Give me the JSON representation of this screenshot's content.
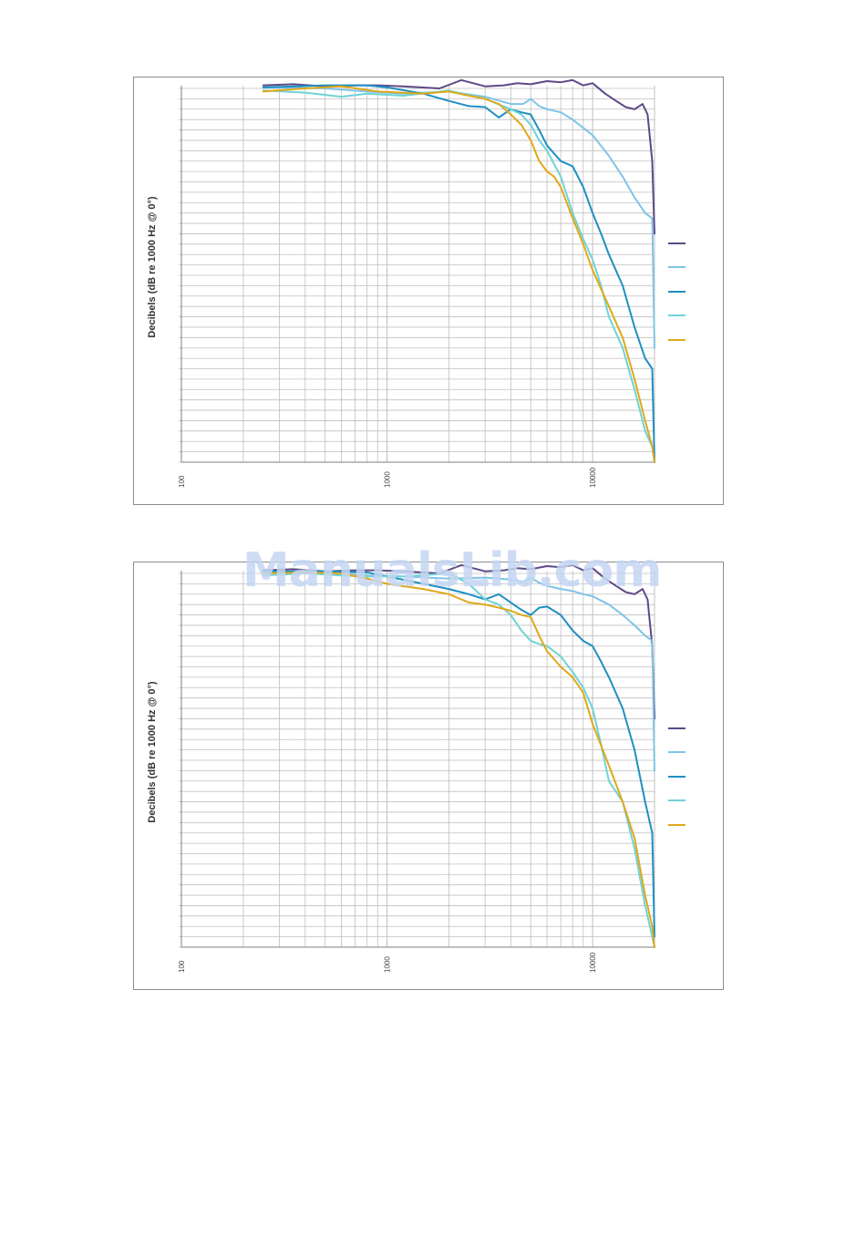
{
  "watermark": "ManualsLib.com",
  "colors": {
    "series": [
      "#5d4a86",
      "#7fc4e8",
      "#1f8fc2",
      "#6fd3d6",
      "#e0a81a"
    ],
    "grid": "#bfbfbf",
    "border": "#8c8c8c"
  },
  "chart_data": [
    {
      "type": "line",
      "ylabel": "Decibels (dB re 1000 Hz @ 0°)",
      "xscale": "log",
      "xlim": [
        100,
        20000
      ],
      "ylim": [
        -36,
        0
      ],
      "x_ticks": [
        "100",
        "1000",
        "10000"
      ],
      "grid": true,
      "legend": "right",
      "series": [
        {
          "x": [
            250,
            350,
            500,
            700,
            900,
            1200,
            1800,
            2300,
            3000,
            3700,
            4300,
            5000,
            6000,
            7000,
            8000,
            9000,
            10000,
            11500,
            13000,
            14500,
            16000,
            17500,
            18500,
            19500,
            20000
          ],
          "values": [
            0.3,
            0.4,
            0.2,
            0.3,
            0.3,
            0.2,
            0,
            0.8,
            0.2,
            0.3,
            0.5,
            0.4,
            0.7,
            0.6,
            0.8,
            0.3,
            0.5,
            -0.5,
            -1.2,
            -1.8,
            -2.0,
            -1.5,
            -2.5,
            -7,
            -14
          ]
        },
        {
          "x": [
            250,
            500,
            800,
            1200,
            2000,
            3000,
            4000,
            4600,
            5000,
            5500,
            6000,
            7000,
            8000,
            9000,
            10000,
            12000,
            14000,
            16000,
            18000,
            19500,
            20000
          ],
          "values": [
            0.1,
            0,
            -0.3,
            -0.5,
            -0.3,
            -0.8,
            -1.5,
            -1.5,
            -1.0,
            -1.7,
            -2.0,
            -2.3,
            -3.0,
            -3.8,
            -4.5,
            -6.5,
            -8.5,
            -10.5,
            -12.0,
            -12.5,
            -25
          ]
        },
        {
          "x": [
            250,
            500,
            800,
            1000,
            1500,
            2000,
            2500,
            3000,
            3500,
            4000,
            4500,
            5000,
            5500,
            6000,
            7000,
            8000,
            9000,
            10000,
            11000,
            12000,
            14000,
            16000,
            18000,
            19500,
            20000
          ],
          "values": [
            0.1,
            0.3,
            0.3,
            0.1,
            -0.5,
            -1.2,
            -1.7,
            -1.8,
            -2.8,
            -2.0,
            -2.3,
            -2.5,
            -4.0,
            -5.5,
            -7.0,
            -7.5,
            -9.5,
            -12.0,
            -14.0,
            -16.0,
            -19.0,
            -23.0,
            -26.0,
            -27.0,
            -36
          ]
        },
        {
          "x": [
            250,
            400,
            600,
            800,
            1200,
            2000,
            3000,
            4000,
            4500,
            5000,
            5500,
            6000,
            7000,
            8000,
            9000,
            10000,
            11000,
            12000,
            14000,
            16000,
            18000,
            19500,
            20000
          ],
          "values": [
            -0.2,
            -0.4,
            -0.8,
            -0.5,
            -0.7,
            -0.2,
            -1.0,
            -2.0,
            -2.5,
            -3.5,
            -5.0,
            -6.0,
            -8.5,
            -12.0,
            -14.5,
            -16.5,
            -19.0,
            -22.0,
            -25.0,
            -29.0,
            -33.0,
            -34.5,
            -36
          ]
        },
        {
          "x": [
            250,
            400,
            600,
            900,
            1500,
            2000,
            2500,
            3000,
            3500,
            4000,
            4500,
            5000,
            5500,
            6000,
            6500,
            7000,
            8000,
            9000,
            10000,
            12000,
            14000,
            16000,
            18000,
            19500,
            20000
          ],
          "values": [
            -0.3,
            0,
            0.2,
            -0.3,
            -0.5,
            -0.3,
            -0.7,
            -1.0,
            -1.5,
            -2.5,
            -3.5,
            -5.0,
            -7.0,
            -8.0,
            -8.5,
            -9.5,
            -12.5,
            -15.0,
            -17.5,
            -21.0,
            -24.0,
            -28.0,
            -32.0,
            -34.5,
            -36
          ]
        }
      ]
    },
    {
      "type": "line",
      "ylabel": "Decibels (dB re 1000 Hz @ 0°)",
      "xscale": "log",
      "xlim": [
        100,
        20000
      ],
      "ylim": [
        -36,
        0
      ],
      "x_ticks": [
        "100",
        "1000",
        "10000"
      ],
      "grid": true,
      "legend": "right",
      "series": [
        {
          "x": [
            250,
            350,
            500,
            700,
            900,
            1200,
            1800,
            2300,
            3000,
            3700,
            4300,
            5000,
            6000,
            7000,
            8000,
            9000,
            10000,
            11500,
            13000,
            14500,
            16000,
            17500,
            18500,
            19500,
            20000
          ],
          "values": [
            0.3,
            0.4,
            0.2,
            0.3,
            0.3,
            0.2,
            0,
            0.8,
            0.2,
            0.3,
            0.5,
            0.4,
            0.7,
            0.6,
            0.8,
            0.3,
            0.5,
            -0.5,
            -1.2,
            -1.8,
            -2.0,
            -1.5,
            -2.5,
            -7,
            -14
          ]
        },
        {
          "x": [
            250,
            500,
            800,
            1200,
            2000,
            3000,
            4000,
            4600,
            5000,
            5500,
            6000,
            7000,
            8000,
            9000,
            10000,
            12000,
            14000,
            16000,
            18000,
            19500,
            20000
          ],
          "values": [
            0.1,
            0,
            -0.2,
            -0.3,
            -0.5,
            -0.4,
            -0.6,
            -0.8,
            -0.4,
            -0.9,
            -1.2,
            -1.5,
            -1.7,
            -2.0,
            -2.2,
            -3.0,
            -4.0,
            -5.0,
            -6.0,
            -6.5,
            -19
          ]
        },
        {
          "x": [
            250,
            500,
            800,
            1000,
            1500,
            2000,
            2500,
            3000,
            3500,
            4000,
            4500,
            5000,
            5500,
            6000,
            7000,
            8000,
            9000,
            10000,
            11000,
            12000,
            14000,
            16000,
            18000,
            19500,
            20000
          ],
          "values": [
            0.2,
            0.2,
            0.1,
            -0.3,
            -1.0,
            -1.5,
            -2.0,
            -2.5,
            -2.0,
            -2.8,
            -3.5,
            -4.0,
            -3.3,
            -3.2,
            -4.0,
            -5.5,
            -6.5,
            -7.0,
            -8.5,
            -10.0,
            -13.0,
            -17.0,
            -22.0,
            -25.0,
            -35
          ]
        },
        {
          "x": [
            250,
            400,
            600,
            800,
            1200,
            2000,
            2500,
            3000,
            3500,
            4000,
            4500,
            5000,
            5500,
            6000,
            7000,
            8000,
            9000,
            10000,
            11000,
            12000,
            14000,
            16000,
            18000,
            19500,
            20000
          ],
          "values": [
            -0.2,
            0,
            -0.2,
            -0.3,
            -0.3,
            0,
            -1.0,
            -2.5,
            -3.0,
            -4.0,
            -5.5,
            -6.5,
            -6.8,
            -7.0,
            -8.0,
            -9.5,
            -11.0,
            -13.0,
            -16.5,
            -20.0,
            -22.0,
            -26.5,
            -32.0,
            -35.0,
            -36
          ]
        },
        {
          "x": [
            250,
            400,
            600,
            800,
            1000,
            1500,
            2000,
            2500,
            3000,
            3500,
            4000,
            4500,
            5000,
            5500,
            6000,
            7000,
            8000,
            9000,
            10000,
            12000,
            14000,
            16000,
            18000,
            19500,
            20000
          ],
          "values": [
            0,
            0.1,
            0,
            -0.5,
            -1.0,
            -1.5,
            -2.0,
            -2.8,
            -3.0,
            -3.3,
            -3.6,
            -4.0,
            -4.2,
            -6.0,
            -7.5,
            -9.0,
            -10.0,
            -11.5,
            -14.5,
            -18.5,
            -22.0,
            -25.5,
            -31.0,
            -34.0,
            -36
          ]
        }
      ]
    }
  ]
}
